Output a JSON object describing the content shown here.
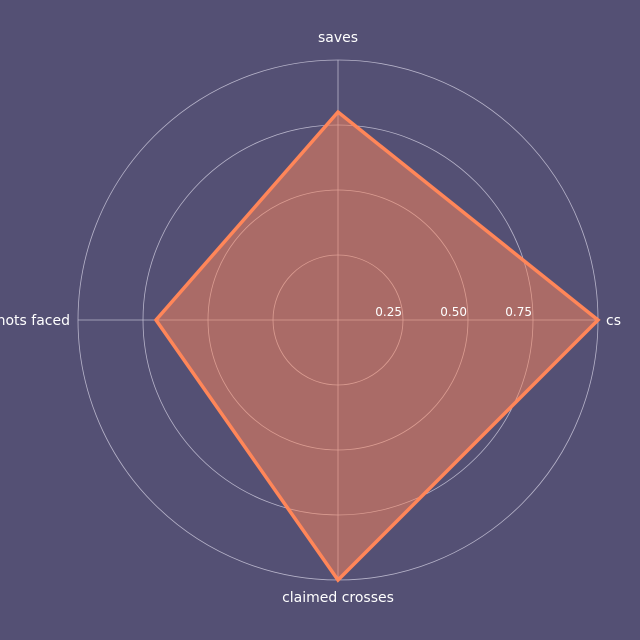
{
  "chart_data": {
    "type": "radar",
    "title": "",
    "categories": [
      "cs",
      "saves",
      "shots faced",
      "claimed crosses"
    ],
    "series": [
      {
        "values": [
          1.0,
          0.8,
          0.7,
          1.0
        ]
      }
    ],
    "rlim": [
      0,
      1
    ],
    "r_ticks": [
      0.25,
      0.5,
      0.75
    ],
    "r_tick_labels": [
      "0.25",
      "0.50",
      "0.75"
    ],
    "grid": true,
    "colors": {
      "background": "#545074",
      "line": "#ff8659",
      "fill": "#ff8659",
      "grid": "#c9c6d9"
    }
  }
}
